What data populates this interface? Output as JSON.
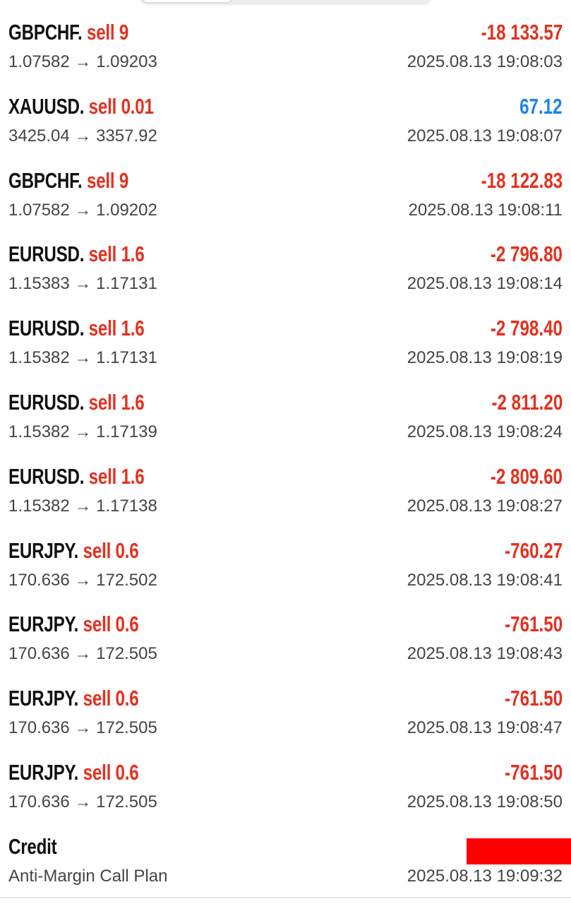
{
  "colors": {
    "loss": "#e5301f",
    "profit": "#1a82f0",
    "redaction": "#ff0000"
  },
  "deals": [
    {
      "symbol": "GBPCHF.",
      "side": "sell 9",
      "profit": "-18 133.57",
      "prices": "1.07582 → 1.09203",
      "time": "2025.08.13 19:08:03",
      "sign": "neg"
    },
    {
      "symbol": "XAUUSD.",
      "side": "sell 0.01",
      "profit": "67.12",
      "prices": "3425.04 → 3357.92",
      "time": "2025.08.13 19:08:07",
      "sign": "pos"
    },
    {
      "symbol": "GBPCHF.",
      "side": "sell 9",
      "profit": "-18 122.83",
      "prices": "1.07582 → 1.09202",
      "time": "2025.08.13 19:08:11",
      "sign": "neg"
    },
    {
      "symbol": "EURUSD.",
      "side": "sell 1.6",
      "profit": "-2 796.80",
      "prices": "1.15383 → 1.17131",
      "time": "2025.08.13 19:08:14",
      "sign": "neg"
    },
    {
      "symbol": "EURUSD.",
      "side": "sell 1.6",
      "profit": "-2 798.40",
      "prices": "1.15382 → 1.17131",
      "time": "2025.08.13 19:08:19",
      "sign": "neg"
    },
    {
      "symbol": "EURUSD.",
      "side": "sell 1.6",
      "profit": "-2 811.20",
      "prices": "1.15382 → 1.17139",
      "time": "2025.08.13 19:08:24",
      "sign": "neg"
    },
    {
      "symbol": "EURUSD.",
      "side": "sell 1.6",
      "profit": "-2 809.60",
      "prices": "1.15382 → 1.17138",
      "time": "2025.08.13 19:08:27",
      "sign": "neg"
    },
    {
      "symbol": "EURJPY.",
      "side": "sell 0.6",
      "profit": "-760.27",
      "prices": "170.636 → 172.502",
      "time": "2025.08.13 19:08:41",
      "sign": "neg"
    },
    {
      "symbol": "EURJPY.",
      "side": "sell 0.6",
      "profit": "-761.50",
      "prices": "170.636 → 172.505",
      "time": "2025.08.13 19:08:43",
      "sign": "neg"
    },
    {
      "symbol": "EURJPY.",
      "side": "sell 0.6",
      "profit": "-761.50",
      "prices": "170.636 → 172.505",
      "time": "2025.08.13 19:08:47",
      "sign": "neg"
    },
    {
      "symbol": "EURJPY.",
      "side": "sell 0.6",
      "profit": "-761.50",
      "prices": "170.636 → 172.505",
      "time": "2025.08.13 19:08:50",
      "sign": "neg"
    }
  ],
  "credit": {
    "title": "Credit",
    "comment": "Anti-Margin Call Plan",
    "time": "2025.08.13 19:09:32"
  }
}
